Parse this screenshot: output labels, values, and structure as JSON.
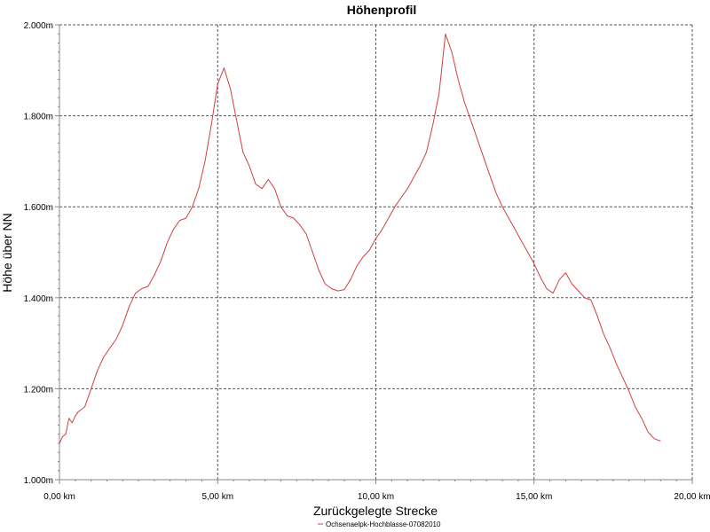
{
  "chart_data": {
    "type": "line",
    "title": "Höhenprofil",
    "xlabel": "Zurückgelegte Strecke",
    "ylabel": "Höhe über NN",
    "xlim": [
      0,
      20
    ],
    "ylim": [
      1000,
      2000
    ],
    "x_ticks": [
      0,
      5,
      10,
      15,
      20
    ],
    "x_tick_labels": [
      "0,00 km",
      "5,00 km",
      "10,00 km",
      "15,00 km",
      "20,00 km"
    ],
    "y_ticks": [
      1000,
      1200,
      1400,
      1600,
      1800,
      2000
    ],
    "y_tick_labels": [
      "1.000m",
      "1.200m",
      "1.400m",
      "1.600m",
      "1.800m",
      "2.000m"
    ],
    "grid": true,
    "legend_position": "bottom-center",
    "colors": {
      "line": "#d23f3f",
      "grid": "#555555",
      "axis": "#888888"
    },
    "series": [
      {
        "name": "Ochsenaelpk-Hochblasse-07082010",
        "x": [
          0.0,
          0.1,
          0.2,
          0.3,
          0.4,
          0.5,
          0.6,
          0.7,
          0.8,
          1.0,
          1.2,
          1.4,
          1.6,
          1.8,
          2.0,
          2.2,
          2.4,
          2.6,
          2.8,
          3.0,
          3.2,
          3.4,
          3.6,
          3.8,
          4.0,
          4.2,
          4.4,
          4.6,
          4.8,
          5.0,
          5.2,
          5.4,
          5.6,
          5.8,
          6.0,
          6.2,
          6.4,
          6.6,
          6.8,
          7.0,
          7.2,
          7.4,
          7.6,
          7.8,
          8.0,
          8.2,
          8.4,
          8.6,
          8.8,
          9.0,
          9.2,
          9.4,
          9.6,
          9.8,
          10.0,
          10.2,
          10.4,
          10.6,
          10.8,
          11.0,
          11.2,
          11.4,
          11.6,
          11.8,
          12.0,
          12.2,
          12.4,
          12.6,
          12.8,
          13.0,
          13.2,
          13.4,
          13.6,
          13.8,
          14.0,
          14.2,
          14.4,
          14.6,
          14.8,
          15.0,
          15.2,
          15.4,
          15.6,
          15.8,
          16.0,
          16.2,
          16.4,
          16.6,
          16.8,
          17.0,
          17.2,
          17.4,
          17.6,
          17.8,
          18.0,
          18.2,
          18.4,
          18.6,
          18.8,
          19.0
        ],
        "values": [
          1080,
          1095,
          1100,
          1135,
          1125,
          1140,
          1150,
          1155,
          1160,
          1200,
          1240,
          1270,
          1290,
          1310,
          1340,
          1380,
          1410,
          1420,
          1425,
          1450,
          1480,
          1520,
          1550,
          1570,
          1575,
          1600,
          1640,
          1700,
          1780,
          1870,
          1905,
          1860,
          1790,
          1720,
          1690,
          1650,
          1640,
          1660,
          1640,
          1600,
          1580,
          1575,
          1560,
          1540,
          1500,
          1460,
          1430,
          1420,
          1415,
          1418,
          1440,
          1470,
          1490,
          1505,
          1530,
          1550,
          1575,
          1600,
          1620,
          1640,
          1665,
          1690,
          1720,
          1780,
          1850,
          1980,
          1940,
          1880,
          1830,
          1790,
          1750,
          1710,
          1670,
          1630,
          1600,
          1575,
          1550,
          1525,
          1500,
          1475,
          1445,
          1420,
          1410,
          1440,
          1455,
          1430,
          1415,
          1400,
          1395,
          1360,
          1320,
          1290,
          1255,
          1225,
          1195,
          1160,
          1135,
          1105,
          1090,
          1085
        ]
      }
    ]
  }
}
